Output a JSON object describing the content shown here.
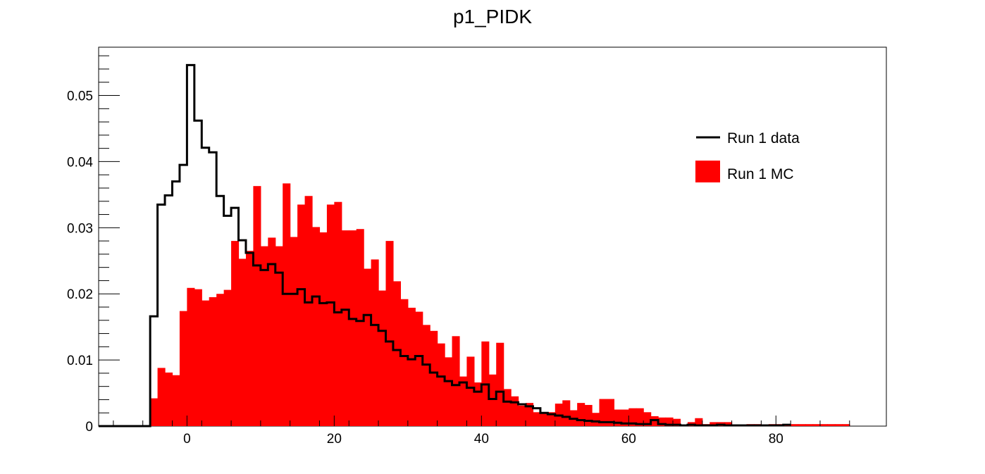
{
  "chart_data": {
    "type": "histogram",
    "title": "p1_PIDK",
    "xlabel": "",
    "ylabel": "",
    "xlim": [
      -12,
      95
    ],
    "ylim": [
      0,
      0.0573
    ],
    "x_ticks": [
      0,
      20,
      40,
      60,
      80
    ],
    "x_tick_labels": [
      "0",
      "20",
      "40",
      "60",
      "80"
    ],
    "y_ticks": [
      0,
      0.01,
      0.02,
      0.03,
      0.04,
      0.05
    ],
    "y_tick_labels": [
      "0",
      "0.01",
      "0.02",
      "0.03",
      "0.04",
      "0.05"
    ],
    "grid": false,
    "legend_position": "top-right",
    "colors": {
      "data": "#000000",
      "mc": "#ff0000"
    },
    "series": [
      {
        "name": "Run 1 data",
        "style": "step-line",
        "bin_edges": [
          -12,
          -10,
          -8,
          -6,
          -5,
          -4,
          -3,
          -2,
          -1,
          0,
          1,
          2,
          3,
          4,
          5,
          6,
          7,
          8,
          9,
          10,
          11,
          12,
          13,
          14,
          15,
          16,
          17,
          18,
          19,
          20,
          21,
          22,
          23,
          24,
          25,
          26,
          27,
          28,
          29,
          30,
          31,
          32,
          33,
          34,
          35,
          36,
          37,
          38,
          39,
          40,
          41,
          42,
          43,
          44,
          45,
          46,
          47,
          48,
          49,
          50,
          51,
          52,
          53,
          54,
          55,
          56,
          57,
          58,
          59,
          60,
          61,
          62,
          63,
          64,
          65,
          66,
          67,
          68,
          69,
          70,
          71,
          72,
          73,
          74,
          75,
          76,
          77,
          78,
          79,
          80,
          81,
          82
        ],
        "values": [
          0,
          0,
          0,
          0,
          0.0166,
          0.0335,
          0.0349,
          0.037,
          0.0395,
          0.0546,
          0.0462,
          0.0421,
          0.0414,
          0.0348,
          0.0318,
          0.033,
          0.0281,
          0.0262,
          0.0243,
          0.0236,
          0.0245,
          0.0232,
          0.02,
          0.02,
          0.0207,
          0.0187,
          0.0196,
          0.0186,
          0.0187,
          0.0172,
          0.0176,
          0.0162,
          0.0159,
          0.0168,
          0.0153,
          0.0144,
          0.0128,
          0.0115,
          0.0106,
          0.0101,
          0.0106,
          0.0093,
          0.0081,
          0.0075,
          0.0068,
          0.0062,
          0.0066,
          0.0058,
          0.0052,
          0.0063,
          0.0041,
          0.0052,
          0.0037,
          0.0036,
          0.0033,
          0.003,
          0.0027,
          0.002,
          0.0018,
          0.0016,
          0.0014,
          0.0011,
          0.0009,
          0.0008,
          0.0007,
          0.0006,
          0.0006,
          0.0005,
          0.0004,
          0.0004,
          0.0003,
          0.0003,
          0.0009,
          0.0003,
          0.0002,
          0.0002,
          0.0001,
          0.0002,
          0.0001,
          0.0001,
          0.0001,
          0.0002,
          0.0001,
          0.0001,
          0.0001,
          0.0001,
          0.0001,
          0.0001,
          0.0001,
          0.0001,
          0.0002
        ]
      },
      {
        "name": "Run 1 MC",
        "style": "filled-bar",
        "bin_start": -5,
        "bin_width": 1,
        "values": [
          0.0042,
          0.0088,
          0.0081,
          0.0077,
          0.0174,
          0.0209,
          0.0207,
          0.019,
          0.0195,
          0.02,
          0.0206,
          0.028,
          0.0253,
          0.0265,
          0.0363,
          0.0272,
          0.0285,
          0.0272,
          0.0367,
          0.0286,
          0.0335,
          0.0348,
          0.0301,
          0.0293,
          0.0335,
          0.0339,
          0.0296,
          0.0296,
          0.0298,
          0.0238,
          0.0252,
          0.0205,
          0.028,
          0.0219,
          0.0192,
          0.0179,
          0.0173,
          0.0153,
          0.0144,
          0.0125,
          0.0104,
          0.0136,
          0.0075,
          0.0105,
          0.0066,
          0.0128,
          0.0078,
          0.0126,
          0.0056,
          0.0045,
          0.0031,
          0.0035,
          0.0021,
          0.0019,
          0.0021,
          0.0034,
          0.0039,
          0.0024,
          0.0035,
          0.0032,
          0.002,
          0.0041,
          0.0041,
          0.0025,
          0.0025,
          0.0027,
          0.0027,
          0.0021,
          0.0015,
          0.0013,
          0.0013,
          0.0011,
          0.0002,
          0.0006,
          0.0012,
          0.0003,
          0.0006,
          0.0006,
          0.0006,
          0.0002,
          0.0002,
          0.0003,
          0.0003,
          0.0002,
          0.0003,
          0.0003,
          0.0003,
          0.0003,
          0.0003,
          0.0003,
          0.0003,
          0.0003,
          0.0003,
          0.0003,
          0.0003
        ]
      }
    ]
  }
}
